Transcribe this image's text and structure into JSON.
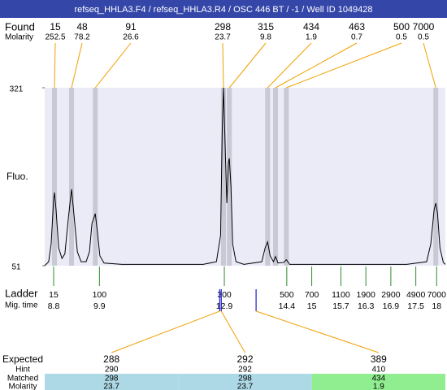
{
  "title": "refseq_HHLA3.F4 / refseq_HHLA3.R4 / OSC 446 BT / -1 / Well ID 1049428",
  "chart_data": {
    "type": "electropherogram",
    "found_label": "Found",
    "molarity_label": "Molarity",
    "peaks": {
      "sizes": [
        15,
        48,
        91,
        298,
        315,
        434,
        463,
        500,
        7000
      ],
      "molarities": [
        252.5,
        78.2,
        26.6,
        23.7,
        9.8,
        1.9,
        0.7,
        0.5,
        0.5
      ],
      "times": [
        8.82,
        9.23,
        9.8,
        12.88,
        13.02,
        13.94,
        14.13,
        14.39,
        17.98
      ]
    },
    "y_label": "Fluo.",
    "ylim": [
      51,
      321
    ],
    "yticks": [
      51,
      321
    ],
    "xlim": [
      8.585,
      18.21
    ],
    "trace": {
      "color": "#000000",
      "x": [
        8.585,
        8.68,
        8.74,
        8.8,
        8.82,
        8.86,
        8.92,
        9.0,
        9.07,
        9.15,
        9.23,
        9.29,
        9.37,
        9.46,
        9.58,
        9.66,
        9.72,
        9.8,
        9.85,
        9.91,
        10.01,
        10.44,
        11.42,
        12.39,
        12.71,
        12.81,
        12.85,
        12.88,
        12.92,
        12.96,
        13.0,
        13.02,
        13.06,
        13.1,
        13.18,
        13.37,
        13.8,
        13.88,
        13.94,
        14.0,
        14.08,
        14.13,
        14.19,
        14.33,
        14.39,
        14.47,
        15.32,
        16.3,
        17.28,
        17.76,
        17.86,
        17.94,
        17.98,
        18.02,
        18.08,
        18.16,
        18.21
      ],
      "y": [
        51,
        57,
        84,
        152,
        162,
        134,
        78,
        62,
        69,
        121,
        167,
        127,
        72,
        57,
        57,
        72,
        115,
        130,
        103,
        66,
        55,
        53,
        53,
        53,
        57,
        97,
        257,
        321,
        232,
        146,
        208,
        214,
        171,
        84,
        57,
        53,
        57,
        78,
        87,
        66,
        57,
        65,
        55,
        56,
        60,
        53,
        53,
        53,
        53,
        57,
        84,
        136,
        146,
        131,
        78,
        56,
        53
      ]
    },
    "ladder_label": "Ladder",
    "mig_time_label": "Mig. time",
    "ladder": {
      "sizes": [
        15,
        100,
        300,
        500,
        700,
        1100,
        1900,
        2900,
        4900,
        7000
      ],
      "times": [
        8.8,
        9.9,
        12.9,
        14.4,
        15,
        15.7,
        16.3,
        16.9,
        17.5,
        18
      ]
    },
    "plot_background": "#ebebf8",
    "band_color": "#c9c9d6",
    "connector_color": "#f0a000",
    "ladder_color": "#2e8b2e",
    "expected_marker_color": "#1a1acc"
  },
  "expected_table": {
    "row_labels": [
      "Expected",
      "Hint",
      "Matched",
      "Molarity"
    ],
    "columns": [
      {
        "expected": 288,
        "hint": 290,
        "matched": 298,
        "molarity": 23.7,
        "color": "#add8e6"
      },
      {
        "expected": 292,
        "hint": 292,
        "matched": 298,
        "molarity": 23.7,
        "color": "#add8e6"
      },
      {
        "expected": 389,
        "hint": 410,
        "matched": 434,
        "molarity": 1.9,
        "color": "#90ee90"
      }
    ]
  }
}
